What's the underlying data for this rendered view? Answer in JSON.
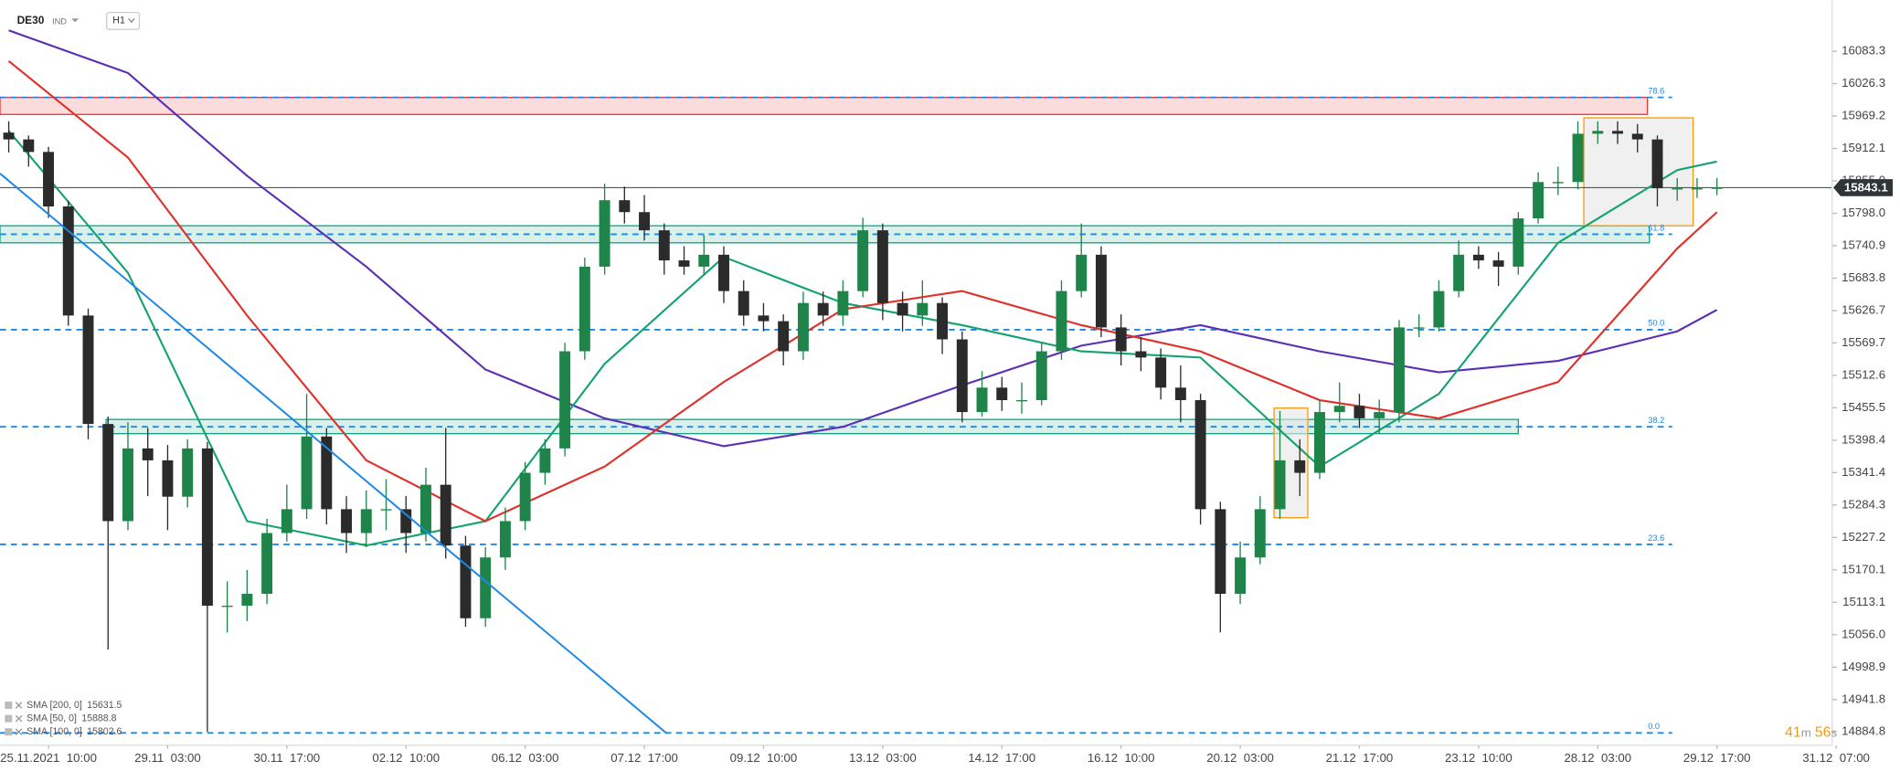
{
  "header": {
    "symbol": "DE30",
    "market": "IND",
    "interval": "H1",
    "countdown": {
      "minutes": "41",
      "minutes_unit": "m",
      "seconds": "56",
      "seconds_unit": "s"
    }
  },
  "chart_data": {
    "type": "candlestick",
    "x": [
      -2,
      -1,
      0,
      1,
      2,
      3,
      4,
      5,
      6,
      7,
      8,
      9,
      10,
      11,
      12,
      13,
      14,
      15,
      16,
      17,
      18,
      19,
      20,
      21,
      22,
      23,
      24,
      25,
      26,
      27,
      28,
      29,
      30,
      31,
      32,
      33,
      34,
      35,
      36,
      37,
      38,
      39,
      40,
      41,
      42,
      43,
      44,
      45,
      46,
      47,
      48,
      49,
      50,
      51,
      52,
      53,
      54,
      55,
      56,
      57,
      58,
      59,
      60,
      61,
      62,
      63,
      64,
      65,
      66,
      67,
      68,
      69,
      70,
      71,
      72,
      73,
      74,
      75,
      76,
      77,
      78,
      79,
      80,
      81,
      82,
      83,
      84
    ],
    "open": [
      15940,
      15928,
      15906,
      15810,
      15618,
      15427,
      15256,
      15384,
      15363,
      15299,
      15384,
      15107,
      15107,
      15128,
      15235,
      15277,
      15405,
      15277,
      15235,
      15277,
      15277,
      15235,
      15320,
      15213,
      15085,
      15192,
      15256,
      15341,
      15384,
      15555,
      15704,
      15821,
      15800,
      15768,
      15715,
      15704,
      15725,
      15661,
      15618,
      15608,
      15555,
      15640,
      15618,
      15661,
      15768,
      15640,
      15618,
      15640,
      15576,
      15448,
      15491,
      15469,
      15469,
      15555,
      15661,
      15725,
      15597,
      15555,
      15544,
      15491,
      15469,
      15277,
      15128,
      15192,
      15277,
      15363,
      15341,
      15448,
      15459,
      15437,
      15448,
      15597,
      15597,
      15661,
      15725,
      15715,
      15704,
      15789,
      15853,
      15853,
      15938,
      15943,
      15938,
      15928,
      15842,
      15842,
      15842
    ],
    "high": [
      15960,
      15935,
      15915,
      15820,
      15630,
      15440,
      15430,
      15420,
      15390,
      15400,
      15395,
      15150,
      15170,
      15260,
      15320,
      15480,
      15420,
      15300,
      15310,
      15330,
      15300,
      15350,
      15420,
      15230,
      15210,
      15280,
      15360,
      15400,
      15570,
      15720,
      15850,
      15845,
      15830,
      15780,
      15740,
      15760,
      15740,
      15680,
      15640,
      15620,
      15660,
      15660,
      15680,
      15790,
      15780,
      15660,
      15680,
      15650,
      15590,
      15520,
      15510,
      15500,
      15570,
      15680,
      15780,
      15740,
      15620,
      15580,
      15560,
      15530,
      15480,
      15290,
      15220,
      15300,
      15450,
      15400,
      15470,
      15500,
      15480,
      15470,
      15610,
      15620,
      15680,
      15750,
      15740,
      15730,
      15800,
      15870,
      15880,
      15960,
      15960,
      15960,
      15955,
      15935,
      15860,
      15860,
      15860
    ],
    "low": [
      15905,
      15880,
      15790,
      15600,
      15400,
      15030,
      15240,
      15300,
      15240,
      15280,
      14885,
      15060,
      15080,
      15110,
      15220,
      15260,
      15250,
      15200,
      15210,
      15240,
      15200,
      15220,
      15190,
      15070,
      15070,
      15170,
      15240,
      15320,
      15370,
      15540,
      15690,
      15780,
      15750,
      15690,
      15690,
      15690,
      15640,
      15600,
      15590,
      15530,
      15540,
      15600,
      15600,
      15650,
      15610,
      15590,
      15600,
      15550,
      15430,
      15440,
      15450,
      15445,
      15460,
      15540,
      15650,
      15580,
      15530,
      15520,
      15470,
      15430,
      15250,
      15060,
      15110,
      15180,
      15260,
      15300,
      15330,
      15430,
      15420,
      15410,
      15430,
      15580,
      15590,
      15650,
      15700,
      15670,
      15690,
      15780,
      15830,
      15840,
      15920,
      15920,
      15905,
      15810,
      15820,
      15825,
      15830
    ],
    "close": [
      15928,
      15906,
      15810,
      15618,
      15427,
      15256,
      15384,
      15363,
      15299,
      15384,
      15107,
      15107,
      15128,
      15235,
      15277,
      15405,
      15277,
      15235,
      15277,
      15277,
      15235,
      15320,
      15213,
      15085,
      15192,
      15256,
      15341,
      15384,
      15555,
      15704,
      15821,
      15800,
      15768,
      15715,
      15704,
      15725,
      15661,
      15618,
      15608,
      15555,
      15640,
      15618,
      15661,
      15768,
      15640,
      15618,
      15640,
      15576,
      15448,
      15491,
      15469,
      15469,
      15555,
      15661,
      15725,
      15597,
      15555,
      15544,
      15491,
      15469,
      15277,
      15128,
      15192,
      15277,
      15363,
      15341,
      15448,
      15459,
      15437,
      15448,
      15597,
      15597,
      15661,
      15725,
      15715,
      15704,
      15789,
      15853,
      15853,
      15938,
      15943,
      15938,
      15928,
      15842,
      15842,
      15842,
      15843.1
    ],
    "up_color": "#1e8449",
    "down_color": "#2b2b2b",
    "xlim": [
      -2.44,
      89.8
    ],
    "xticks": [
      {
        "value": 0,
        "label": "25.11.2021  10:00"
      },
      {
        "value": 6,
        "label": "29.11  03:00"
      },
      {
        "value": 12,
        "label": "30.11  17:00"
      },
      {
        "value": 18,
        "label": "02.12  10:00"
      },
      {
        "value": 24,
        "label": "06.12  03:00"
      },
      {
        "value": 30,
        "label": "07.12  17:00"
      },
      {
        "value": 36,
        "label": "09.12  10:00"
      },
      {
        "value": 42,
        "label": "13.12  03:00"
      },
      {
        "value": 48,
        "label": "14.12  17:00"
      },
      {
        "value": 54,
        "label": "16.12  10:00"
      },
      {
        "value": 60,
        "label": "20.12  03:00"
      },
      {
        "value": 66,
        "label": "21.12  17:00"
      },
      {
        "value": 72,
        "label": "23.12  10:00"
      },
      {
        "value": 78,
        "label": "28.12  03:00"
      },
      {
        "value": 84,
        "label": "29.12  17:00"
      },
      {
        "value": 90,
        "label": "31.12  07:00"
      }
    ],
    "ylim": [
      14861.4,
      16172.9
    ],
    "yticks": [
      16083.3,
      16026.3,
      15969.2,
      15912.1,
      {
        "value": 15855,
        "label": "15855.0"
      },
      {
        "value": 15798,
        "label": "15798.0"
      },
      15740.9,
      15683.8,
      15626.7,
      15569.7,
      15512.6,
      15455.5,
      15398.4,
      15341.4,
      15284.3,
      15227.2,
      15170.1,
      15113.1,
      {
        "value": 15056,
        "label": "15056.0"
      },
      14998.9,
      14941.8,
      14884.8
    ],
    "last_price": 15843.1,
    "indicators": [
      {
        "name": "SMA [200, 0]",
        "value": 15631.5,
        "color": "#5b2fb3",
        "x": [
          -2,
          4,
          10,
          16,
          22,
          28,
          34,
          40,
          46,
          52,
          58,
          64,
          70,
          76,
          82,
          84
        ],
        "values": [
          16120,
          16045,
          15864,
          15704,
          15523,
          15437,
          15388,
          15422,
          15495,
          15565,
          15601,
          15555,
          15518,
          15538,
          15590,
          15628
        ]
      },
      {
        "name": "SMA [50, 0]",
        "value": 15888.8,
        "color": "#13a36e",
        "x": [
          -2,
          4,
          10,
          16,
          22,
          28,
          34,
          40,
          46,
          52,
          58,
          64,
          70,
          76,
          82,
          84
        ],
        "values": [
          15943,
          15693,
          15256,
          15213,
          15256,
          15533,
          15721,
          15640,
          15601,
          15555,
          15544,
          15352,
          15480,
          15746,
          15874,
          15889
        ]
      },
      {
        "name": "SMA [100, 0]",
        "value": 15802.6,
        "color": "#e0302a",
        "x": [
          -2,
          4,
          10,
          16,
          22,
          28,
          34,
          40,
          46,
          52,
          58,
          64,
          70,
          76,
          82,
          84
        ],
        "values": [
          16066,
          15896,
          15618,
          15363,
          15256,
          15352,
          15501,
          15629,
          15661,
          15601,
          15555,
          15469,
          15437,
          15501,
          15736,
          15800
        ]
      }
    ],
    "levels": [
      {
        "label": "78.6",
        "value": 16002
      },
      {
        "label": "61.8",
        "value": 15761
      },
      {
        "label": "50.0",
        "value": 15593
      },
      {
        "label": "38.2",
        "value": 15422
      },
      {
        "label": "23.6",
        "value": 15215
      },
      {
        "label": "0.0",
        "value": 14883
      }
    ],
    "level_color": "#1e88e5",
    "zones": [
      {
        "x": [
          -2.44,
          80.5
        ],
        "y": [
          15972,
          16002
        ],
        "stroke": "#e53935",
        "fill": "#f8c4c6"
      },
      {
        "x": [
          -2.44,
          80.6
        ],
        "y": [
          15746,
          15776
        ],
        "stroke": "#16a085",
        "fill": "#bfe8dc"
      },
      {
        "x": [
          2.9,
          74.0
        ],
        "y": [
          15410,
          15435
        ],
        "stroke": "#16a085",
        "fill": "#bfe8dc"
      },
      {
        "x": [
          61.7,
          63.4
        ],
        "y": [
          15262,
          15455
        ],
        "stroke": "#f39c12",
        "fill": "#e6e6e6"
      },
      {
        "x": [
          77.3,
          82.8
        ],
        "y": [
          15776,
          15966
        ],
        "stroke": "#f39c12",
        "fill": "#e6e6e6"
      }
    ],
    "trendline": {
      "x": [
        -2.44,
        31.1
      ],
      "y": [
        15868,
        14883
      ],
      "color": "#1e88e5"
    }
  }
}
